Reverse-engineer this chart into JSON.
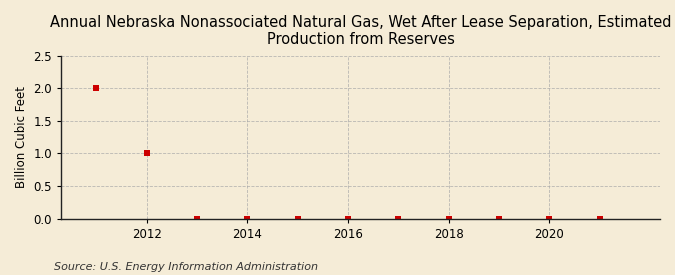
{
  "title": "Annual Nebraska Nonassociated Natural Gas, Wet After Lease Separation, Estimated\nProduction from Reserves",
  "ylabel": "Billion Cubic Feet",
  "source": "Source: U.S. Energy Information Administration",
  "background_color": "#f5ecd7",
  "plot_background_color": "#f5ecd7",
  "x_data": [
    2011,
    2012,
    2013,
    2014,
    2015,
    2016,
    2017,
    2018,
    2019,
    2020,
    2021
  ],
  "y_data": [
    2.0,
    1.0,
    0.003,
    0.003,
    0.003,
    0.003,
    0.003,
    0.003,
    0.003,
    0.003,
    0.003
  ],
  "marker_color": "#cc0000",
  "ylim": [
    0,
    2.5
  ],
  "yticks": [
    0.0,
    0.5,
    1.0,
    1.5,
    2.0,
    2.5
  ],
  "xlim": [
    2010.3,
    2022.2
  ],
  "xticks": [
    2012,
    2014,
    2016,
    2018,
    2020
  ],
  "grid_color": "#aaaaaa",
  "title_fontsize": 10.5,
  "ylabel_fontsize": 8.5,
  "source_fontsize": 8,
  "tick_fontsize": 8.5
}
